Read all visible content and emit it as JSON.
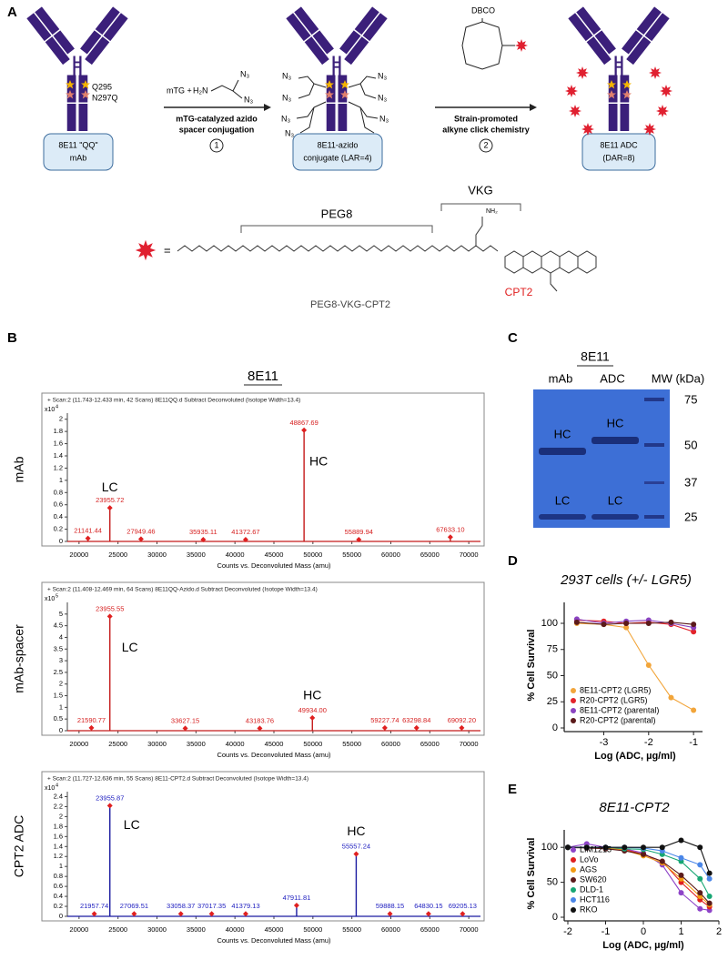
{
  "figure": {
    "panel_a": {
      "label": "A",
      "mutations": [
        "Q295",
        "N297Q"
      ],
      "boxes": [
        [
          "8E11 \"QQ\"",
          "mAb"
        ],
        [
          "8E11-azido",
          "conjugate (LAR=4)"
        ],
        [
          "8E11 ADC",
          "(DAR=8)"
        ]
      ],
      "step1": {
        "reagent": "mTG +",
        "amine": "H₂N",
        "azide": "N₃",
        "caption": [
          "mTG-catalyzed azido",
          "spacer conjugation"
        ],
        "number": 1
      },
      "step2": {
        "reagent": "DBCO",
        "caption": [
          "Strain-promoted",
          "alkyne click chemistry"
        ],
        "number": 2
      },
      "linker": {
        "equals": "=",
        "peg": "PEG8",
        "vkg": "VKG",
        "payload": "CPT2",
        "name": "PEG8-VKG-CPT2",
        "amine": "NH₂"
      }
    },
    "panel_b": {
      "label": "B",
      "title": "8E11",
      "sample_labels": [
        "mAb",
        "mAb-spacer",
        "CPT2 ADC"
      ],
      "peak_names": [
        "LC",
        "HC"
      ]
    },
    "panel_c": {
      "label": "C",
      "title": "8E11",
      "lanes": [
        "mAb",
        "ADC",
        "MW (kDa)"
      ],
      "bands": [
        "HC",
        "LC"
      ],
      "mw_markers": [
        75,
        50,
        37,
        25
      ]
    },
    "panel_d": {
      "label": "D"
    },
    "panel_e": {
      "label": "E"
    }
  },
  "chart_data": [
    {
      "type": "spectrum",
      "header": "+ Scan:2 (11.743-12.433 min, 42 Scans) 8E11QQ.d  Subtract Deconvoluted (Isotope Width=13.4)",
      "y_scale": "x10",
      "y_exponent": 4,
      "xlabel": "Counts vs. Deconvoluted Mass (amu)",
      "x": [
        21141.44,
        23955.72,
        27949.46,
        35935.11,
        41372.67,
        48867.69,
        55889.94,
        67633.1
      ],
      "x_labels": [
        "21141.44",
        "23955.72",
        "27949.46",
        "35935.11",
        "41372.67",
        "48867.69",
        "55889.94",
        "67633.10"
      ],
      "values": [
        0.05,
        0.55,
        0.04,
        0.03,
        0.03,
        1.82,
        0.03,
        0.07
      ],
      "color": "#c41a1a",
      "label_color": "#d62020",
      "marker_color": "#e02020",
      "xlim": [
        18500,
        71500
      ],
      "ylim": [
        0,
        2.1
      ],
      "xticks": [
        20000,
        25000,
        30000,
        35000,
        40000,
        45000,
        50000,
        55000,
        60000,
        65000,
        70000
      ],
      "yticks": [
        0,
        0.2,
        0.4,
        0.6,
        0.8,
        1,
        1.2,
        1.4,
        1.6,
        1.8,
        2
      ]
    },
    {
      "type": "spectrum",
      "header": "+ Scan:2 (11.408-12.469 min, 64 Scans) 8E11QQ-Azido.d  Subtract Deconvoluted (Isotope Width=13.4)",
      "y_scale": "x10",
      "y_exponent": 5,
      "xlabel": "Counts vs. Deconvoluted Mass (amu)",
      "x": [
        21590.77,
        23955.55,
        33627.15,
        43183.76,
        49934.0,
        59227.74,
        63298.84,
        69092.2
      ],
      "x_labels": [
        "21590.77",
        "23955.55",
        "33627.15",
        "43183.76",
        "49934.00",
        "59227.74",
        "63298.84",
        "69092.20"
      ],
      "values": [
        0.12,
        4.9,
        0.1,
        0.1,
        0.55,
        0.12,
        0.12,
        0.12
      ],
      "color": "#c41a1a",
      "label_color": "#d62020",
      "marker_color": "#e02020",
      "xlim": [
        18500,
        71500
      ],
      "ylim": [
        0,
        5.5
      ],
      "xticks": [
        20000,
        25000,
        30000,
        35000,
        40000,
        45000,
        50000,
        55000,
        60000,
        65000,
        70000
      ],
      "yticks": [
        0,
        0.5,
        1,
        1.5,
        2,
        2.5,
        3,
        3.5,
        4,
        4.5,
        5
      ]
    },
    {
      "type": "spectrum",
      "header": "+ Scan:2 (11.727-12.636 min, 55 Scans) 8E11-CPT2.d  Subtract Deconvoluted (Isotope Width=13.4)",
      "y_scale": "x10",
      "y_exponent": 4,
      "xlabel": "Counts vs. Deconvoluted Mass (amu)",
      "x": [
        21957.74,
        23955.87,
        27069.51,
        33058.37,
        37017.35,
        41379.13,
        47911.81,
        55557.24,
        59888.15,
        64830.15,
        69205.13
      ],
      "x_labels": [
        "21957.74",
        "23955.87",
        "27069.51",
        "33058.37",
        "37017.35",
        "41379.13",
        "47911.81",
        "55557.24",
        "59888.15",
        "64830.15",
        "69205.13"
      ],
      "values": [
        0.05,
        2.22,
        0.05,
        0.05,
        0.05,
        0.05,
        0.22,
        1.25,
        0.05,
        0.05,
        0.05
      ],
      "color": "#1a1aa0",
      "label_color": "#2020c0",
      "marker_color": "#e02020",
      "xlim": [
        18500,
        71500
      ],
      "ylim": [
        0,
        2.5
      ],
      "xticks": [
        20000,
        25000,
        30000,
        35000,
        40000,
        45000,
        50000,
        55000,
        60000,
        65000,
        70000
      ],
      "yticks": [
        0,
        0.2,
        0.4,
        0.6,
        0.8,
        1,
        1.2,
        1.4,
        1.6,
        1.8,
        2,
        2.2,
        2.4
      ]
    },
    {
      "type": "dose_response",
      "title": "293T cells (+/- LGR5)",
      "xlabel": "Log (ADC, µg/ml)",
      "ylabel": "% Cell Survival",
      "x": [
        -3.6,
        -3.0,
        -2.5,
        -2.0,
        -1.5,
        -1.0
      ],
      "series": [
        {
          "name": "8E11-CPT2 (LGR5)",
          "color": "#f2a53a",
          "values": [
            100,
            99,
            96,
            60,
            29,
            17
          ]
        },
        {
          "name": "R20-CPT2 (LGR5)",
          "color": "#e3242b",
          "values": [
            103,
            102,
            100,
            101,
            99,
            92
          ]
        },
        {
          "name": "8E11-CPT2 (parental)",
          "color": "#8a43c0",
          "values": [
            104,
            100,
            102,
            103,
            100,
            96
          ]
        },
        {
          "name": "R20-CPT2 (parental)",
          "color": "#5b1a1a",
          "values": [
            101,
            99,
            100,
            100,
            101,
            99
          ]
        }
      ],
      "xlim": [
        -3.8,
        -0.8
      ],
      "ylim": [
        0,
        120
      ],
      "xticks": [
        -3,
        -2,
        -1
      ],
      "yticks": [
        0,
        25,
        50,
        75,
        100
      ],
      "legend": "lower-left"
    },
    {
      "type": "dose_response",
      "title": "8E11-CPT2",
      "xlabel": "Log (ADC, µg/ml)",
      "ylabel": "% Cell Survival",
      "x": [
        -2,
        -1.5,
        -1,
        -0.5,
        0,
        0.5,
        1,
        1.5,
        1.75
      ],
      "series": [
        {
          "name": "LIM1215",
          "color": "#8e44c8",
          "values": [
            100,
            105,
            100,
            98,
            92,
            75,
            35,
            12,
            10
          ]
        },
        {
          "name": "LoVo",
          "color": "#e02020",
          "values": [
            100,
            100,
            99,
            97,
            90,
            80,
            50,
            25,
            15
          ]
        },
        {
          "name": "AGS",
          "color": "#f39c12",
          "values": [
            100,
            100,
            99,
            96,
            88,
            78,
            55,
            30,
            18
          ]
        },
        {
          "name": "SW620",
          "color": "#5b1a1a",
          "values": [
            100,
            99,
            98,
            95,
            90,
            80,
            60,
            35,
            20
          ]
        },
        {
          "name": "DLD-1",
          "color": "#17a673",
          "values": [
            100,
            100,
            100,
            98,
            97,
            90,
            80,
            55,
            30
          ]
        },
        {
          "name": "HCT116",
          "color": "#4a86e8",
          "values": [
            100,
            100,
            100,
            100,
            99,
            95,
            85,
            75,
            55
          ]
        },
        {
          "name": "RKO",
          "color": "#111111",
          "values": [
            100,
            100,
            100,
            100,
            100,
            100,
            110,
            100,
            63
          ]
        }
      ],
      "xlim": [
        -2,
        2
      ],
      "ylim": [
        0,
        125
      ],
      "xticks": [
        -2,
        -1,
        0,
        1,
        2
      ],
      "yticks": [
        0,
        50,
        100
      ],
      "legend": "lower-left"
    }
  ]
}
